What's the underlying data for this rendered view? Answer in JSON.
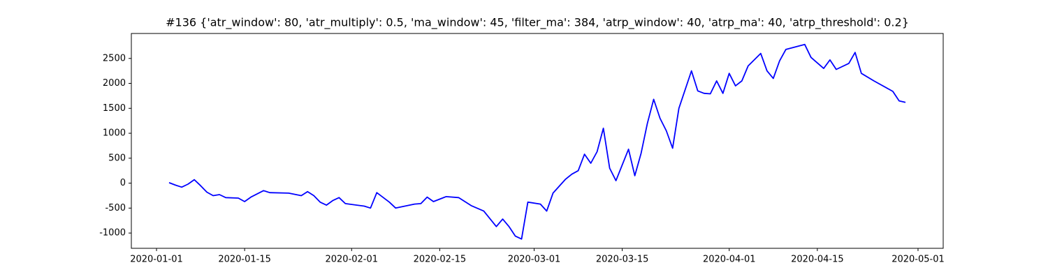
{
  "chart_data": {
    "type": "line",
    "title": "#136 {'atr_window': 80, 'atr_multiply': 0.5, 'ma_window': 45, 'filter_ma': 384, 'atrp_window': 40, 'atrp_ma': 40, 'atrp_threshold': 0.2}",
    "x": [
      "2020-01-03",
      "2020-01-04",
      "2020-01-05",
      "2020-01-06",
      "2020-01-07",
      "2020-01-08",
      "2020-01-09",
      "2020-01-10",
      "2020-01-11",
      "2020-01-12",
      "2020-01-14",
      "2020-01-15",
      "2020-01-16",
      "2020-01-18",
      "2020-01-19",
      "2020-01-22",
      "2020-01-24",
      "2020-01-25",
      "2020-01-26",
      "2020-01-27",
      "2020-01-28",
      "2020-01-29",
      "2020-01-30",
      "2020-01-31",
      "2020-02-03",
      "2020-02-04",
      "2020-02-05",
      "2020-02-07",
      "2020-02-08",
      "2020-02-11",
      "2020-02-12",
      "2020-02-13",
      "2020-02-14",
      "2020-02-16",
      "2020-02-18",
      "2020-02-20",
      "2020-02-22",
      "2020-02-24",
      "2020-02-25",
      "2020-02-26",
      "2020-02-27",
      "2020-02-28",
      "2020-02-29",
      "2020-03-02",
      "2020-03-03",
      "2020-03-04",
      "2020-03-05",
      "2020-03-06",
      "2020-03-07",
      "2020-03-08",
      "2020-03-09",
      "2020-03-10",
      "2020-03-11",
      "2020-03-12",
      "2020-03-13",
      "2020-03-14",
      "2020-03-16",
      "2020-03-17",
      "2020-03-18",
      "2020-03-19",
      "2020-03-20",
      "2020-03-21",
      "2020-03-22",
      "2020-03-23",
      "2020-03-24",
      "2020-03-26",
      "2020-03-27",
      "2020-03-28",
      "2020-03-29",
      "2020-03-30",
      "2020-03-31",
      "2020-04-01",
      "2020-04-02",
      "2020-04-03",
      "2020-04-04",
      "2020-04-06",
      "2020-04-07",
      "2020-04-08",
      "2020-04-09",
      "2020-04-10",
      "2020-04-13",
      "2020-04-14",
      "2020-04-16",
      "2020-04-17",
      "2020-04-18",
      "2020-04-20",
      "2020-04-21",
      "2020-04-22",
      "2020-04-24",
      "2020-04-27",
      "2020-04-28",
      "2020-04-29"
    ],
    "series": [
      {
        "color": "#0000ff",
        "values": [
          10,
          -40,
          -80,
          -20,
          70,
          -50,
          -180,
          -250,
          -230,
          -290,
          -300,
          -370,
          -280,
          -150,
          -190,
          -200,
          -250,
          -170,
          -250,
          -380,
          -440,
          -350,
          -290,
          -410,
          -460,
          -500,
          -190,
          -380,
          -500,
          -420,
          -410,
          -280,
          -370,
          -270,
          -290,
          -450,
          -560,
          -870,
          -720,
          -870,
          -1060,
          -1120,
          -380,
          -420,
          -560,
          -200,
          -60,
          80,
          180,
          250,
          580,
          400,
          630,
          1100,
          300,
          50,
          680,
          150,
          600,
          1200,
          1680,
          1300,
          1050,
          700,
          1500,
          2250,
          1850,
          1800,
          1790,
          2050,
          1800,
          2200,
          1950,
          2050,
          2350,
          2600,
          2250,
          2100,
          2450,
          2680,
          2780,
          2520,
          2300,
          2470,
          2280,
          2400,
          2620,
          2200,
          2050,
          1840,
          1650,
          1620
        ]
      }
    ],
    "xlim": [
      "2019-12-28",
      "2020-05-05"
    ],
    "xticks": [
      "2020-01-01",
      "2020-01-15",
      "2020-02-01",
      "2020-02-15",
      "2020-03-01",
      "2020-03-15",
      "2020-04-01",
      "2020-04-15",
      "2020-05-01"
    ],
    "ylim": [
      -1306,
      3000
    ],
    "yticks": [
      -1000,
      -500,
      0,
      500,
      1000,
      1500,
      2000,
      2500
    ]
  }
}
